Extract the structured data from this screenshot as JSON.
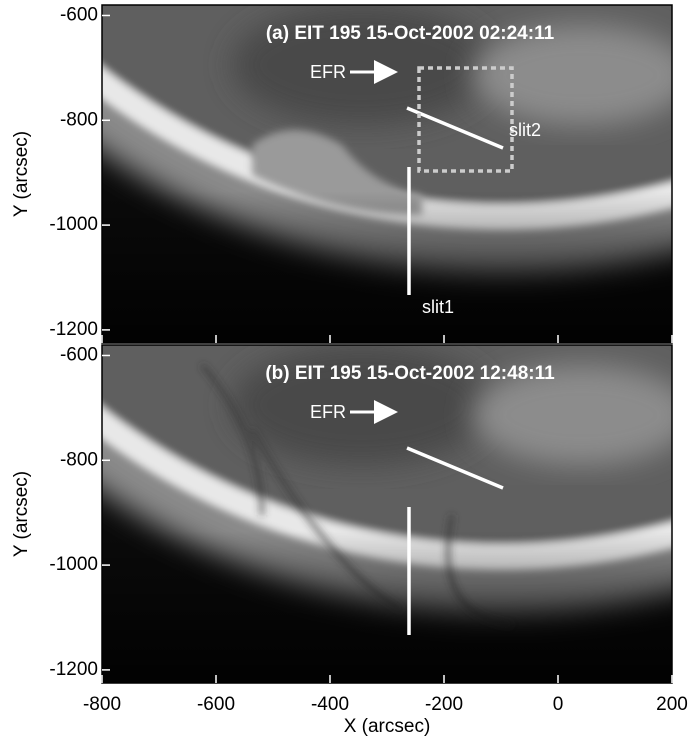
{
  "chart_data": [
    {
      "type": "image",
      "title": "(a) EIT 195 15-Oct-2002 02:24:11",
      "ylabel": "Y (arcsec)",
      "xlim": [
        -800,
        200
      ],
      "ylim": [
        -1225,
        -580
      ],
      "xticks": [
        -800,
        -600,
        -400,
        -200,
        0,
        200
      ],
      "yticks": [
        -600,
        -800,
        -1000,
        -1200
      ],
      "annotations": [
        "EFR",
        "slit1",
        "slit2"
      ]
    },
    {
      "type": "image",
      "title": "(b) EIT 195 15-Oct-2002 12:48:11",
      "ylabel": "Y (arcsec)",
      "xlabel": "X (arcsec)",
      "xlim": [
        -800,
        200
      ],
      "ylim": [
        -1225,
        -580
      ],
      "xticks": [
        -800,
        -600,
        -400,
        -200,
        0,
        200
      ],
      "yticks": [
        -600,
        -800,
        -1000,
        -1200
      ],
      "annotations": [
        "EFR"
      ]
    }
  ]
}
